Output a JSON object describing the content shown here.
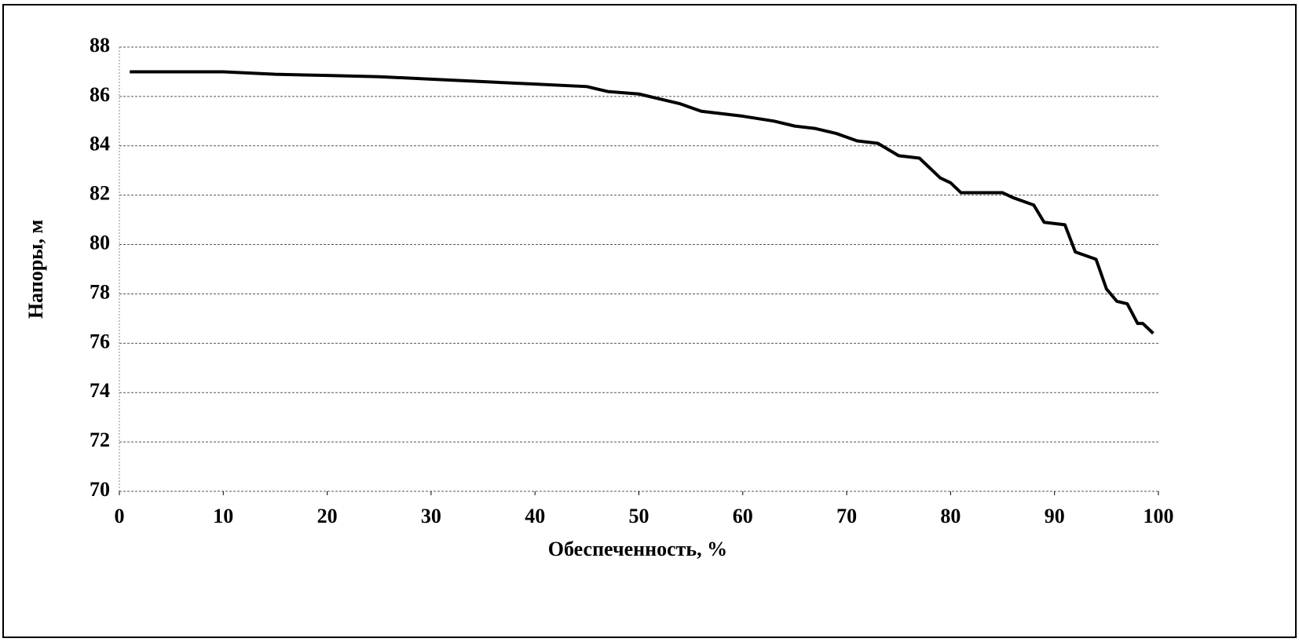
{
  "chart_data": {
    "type": "line",
    "xlabel": "Обеспеченность, %",
    "ylabel": "Напоры, м",
    "x": [
      1,
      5,
      10,
      15,
      20,
      25,
      30,
      35,
      40,
      45,
      47,
      50,
      52,
      54,
      56,
      60,
      63,
      65,
      67,
      69,
      71,
      73,
      75,
      77,
      79,
      80,
      81,
      85,
      86,
      88,
      89,
      91,
      92,
      94,
      95,
      96,
      97,
      98,
      98.5,
      99.5
    ],
    "series": [
      {
        "color": "#000000",
        "values": [
          87.0,
          87.0,
          87.0,
          86.9,
          86.85,
          86.8,
          86.7,
          86.6,
          86.5,
          86.4,
          86.2,
          86.1,
          85.9,
          85.7,
          85.4,
          85.2,
          85.0,
          84.8,
          84.7,
          84.5,
          84.2,
          84.1,
          83.6,
          83.5,
          82.7,
          82.5,
          82.1,
          82.1,
          81.9,
          81.6,
          80.9,
          80.8,
          79.7,
          79.4,
          78.2,
          77.7,
          77.6,
          76.8,
          76.8,
          76.4
        ]
      }
    ],
    "xlim": [
      0,
      100
    ],
    "xticks": [
      0,
      10,
      20,
      30,
      40,
      50,
      60,
      70,
      80,
      90,
      100
    ],
    "ylim": [
      70,
      88
    ],
    "yticks": [
      70,
      72,
      74,
      76,
      78,
      80,
      82,
      84,
      86,
      88
    ],
    "grid": true
  }
}
